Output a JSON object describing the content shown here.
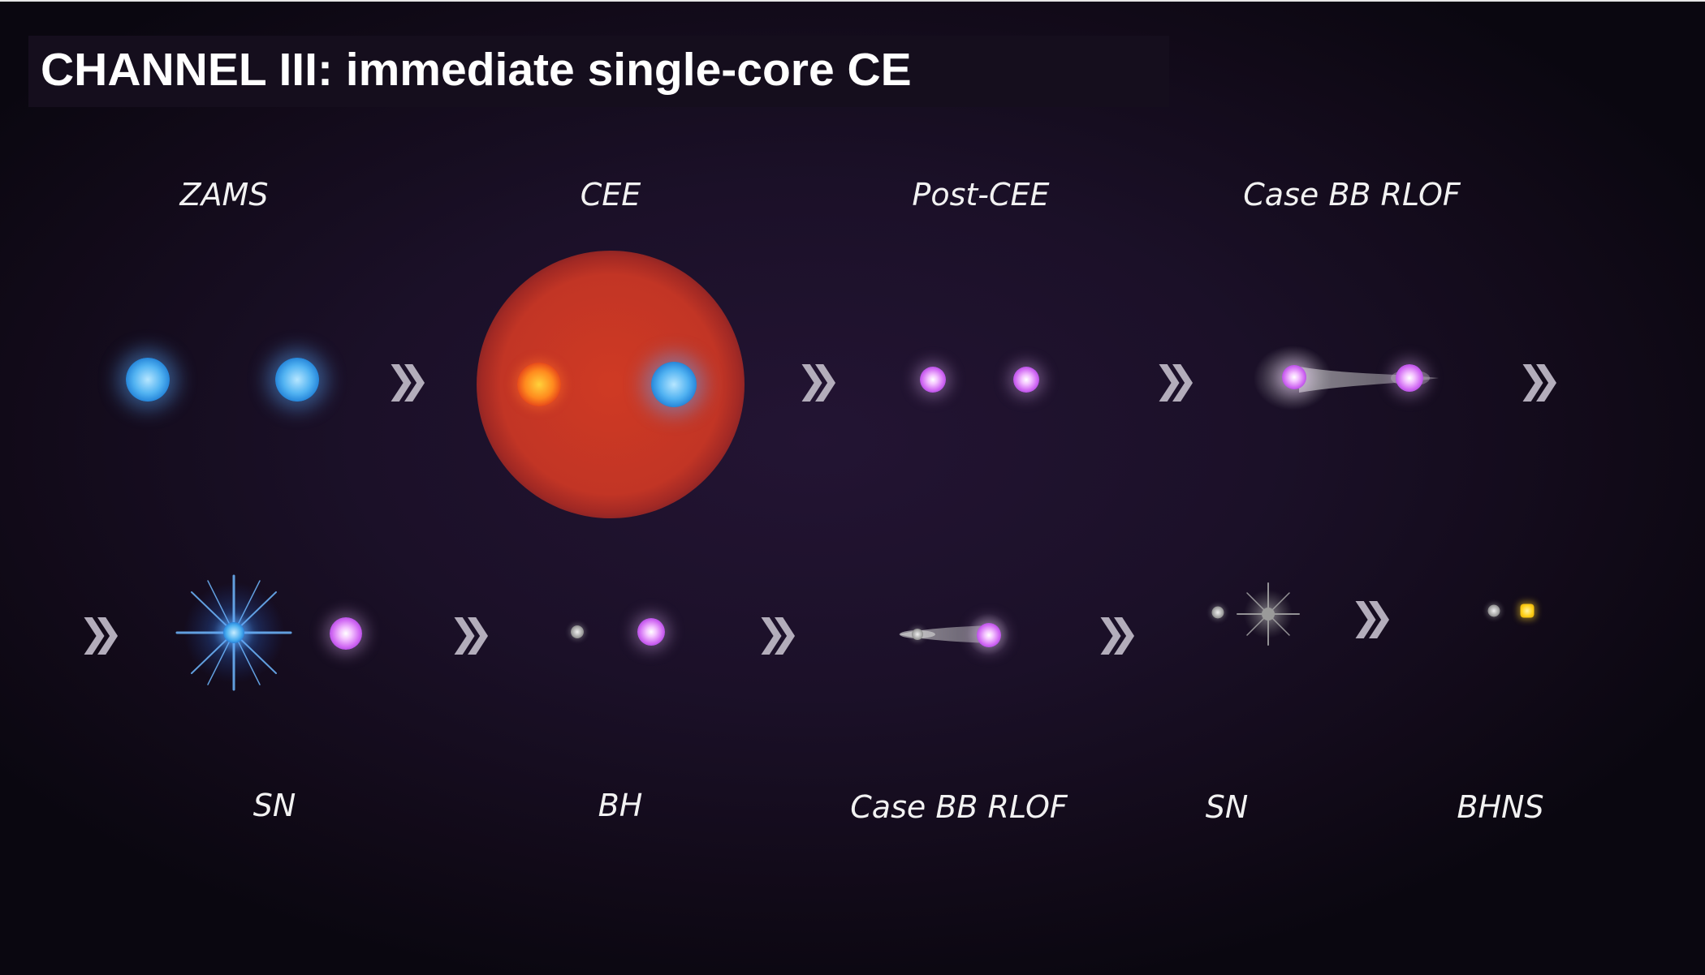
{
  "title": "CHANNEL III: immediate single-core CE",
  "stages_top": [
    "ZAMS",
    "CEE",
    "Post-CEE",
    "Case BB RLOF"
  ],
  "stages_bottom": [
    "SN",
    "BH",
    "Case BB RLOF",
    "SN",
    "BHNS"
  ],
  "arrow_glyph": "❯❯",
  "arrow_color": "#b3adbb",
  "colors": {
    "background": "#1b1028",
    "envelope": "#c23525",
    "blue_star": "#52b3f2",
    "helium_star": "#cf66f2",
    "compact_object": "#a5a5a5",
    "neutron_star": "#ffd21c"
  }
}
